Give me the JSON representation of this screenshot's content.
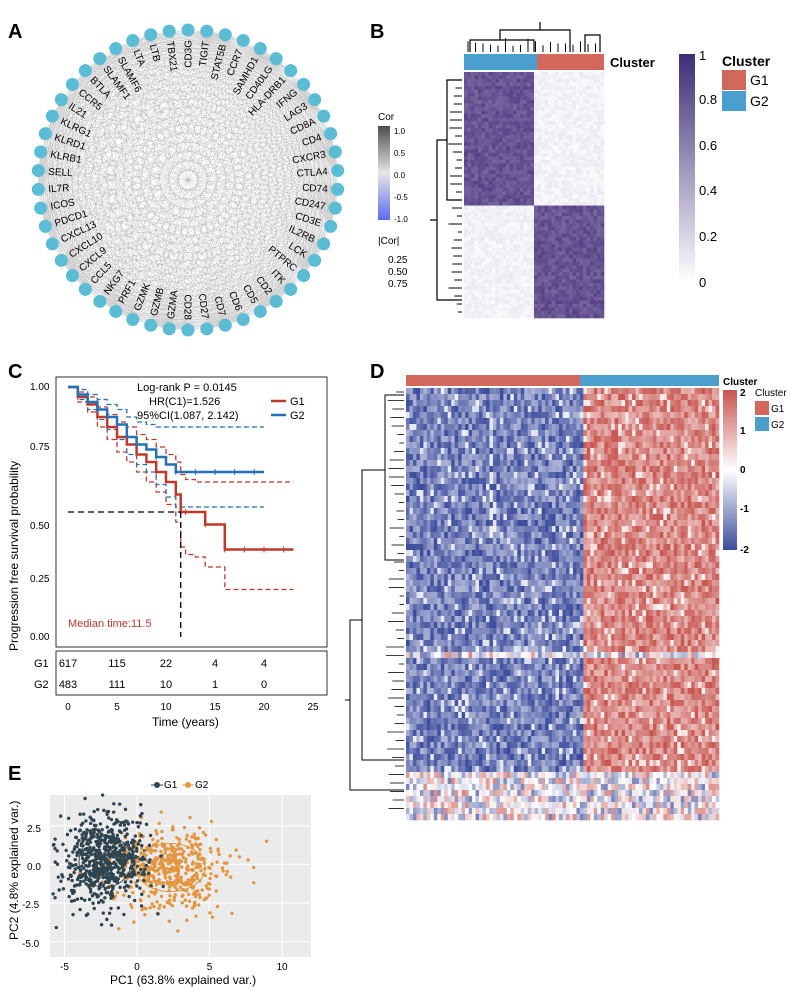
{
  "panels": {
    "a": "A",
    "b": "B",
    "c": "C",
    "d": "D",
    "e": "E"
  },
  "colors": {
    "g1": "#d2675c",
    "g2": "#4a9fcf",
    "heat_dark": "#3f2c77",
    "heat_blue": "#3a4b9c",
    "heat_red": "#c8554f",
    "pca_g1": "#2f4550",
    "pca_g2": "#e3963f",
    "km_g1": "#c1392b",
    "km_g2": "#2471b5",
    "gray_bg": "#ebebeb",
    "node": "#5bbcd6"
  },
  "chart_data": [
    {
      "id": "A",
      "type": "network",
      "nodes": [
        "CD3G",
        "TIGIT",
        "STAT5B",
        "CCR7",
        "SAMHD1",
        "CD40LG",
        "HLA-DRB1",
        "IFNG",
        "LAG3",
        "CD8A",
        "CD4",
        "CXCR3",
        "CTLA4",
        "CD74",
        "CD247",
        "CD3E",
        "IL2RB",
        "LCK",
        "PTPRC",
        "ITK",
        "CD2",
        "CD5",
        "CD6",
        "CD7",
        "CD27",
        "CD28",
        "GZMA",
        "GZMB",
        "GZMK",
        "PRF1",
        "NKG7",
        "CCL5",
        "CXCL9",
        "CXCL10",
        "CXCL13",
        "PDCD1",
        "ICOS",
        "IL7R",
        "SELL",
        "KLRB1",
        "KLRD1",
        "KLRG1",
        "IL21",
        "CCR5",
        "BTLA",
        "SLAMF1",
        "SLAMF6",
        "LTA",
        "LTB",
        "TBX21"
      ],
      "legend": {
        "title": "Cor",
        "ticks": [
          "1.0",
          "0.5",
          "0.0",
          "-0.5",
          "-1.0"
        ],
        "size_title": "|Cor|",
        "sizes": [
          "0.25",
          "0.50",
          "0.75"
        ]
      }
    },
    {
      "id": "B",
      "type": "heatmap",
      "title": "Cluster",
      "legend_title": "Cluster",
      "groups": [
        "G1",
        "G2"
      ],
      "scale_ticks": [
        "1",
        "0.8",
        "0.6",
        "0.4",
        "0.2",
        "0"
      ]
    },
    {
      "id": "C",
      "type": "line",
      "ylabel": "Progression free survival probability",
      "xlabel": "Time (years)",
      "yticks": [
        "1.00",
        "0.75",
        "0.50",
        "0.25",
        "0.00"
      ],
      "xticks": [
        "0",
        "5",
        "10",
        "15",
        "20",
        "25"
      ],
      "xlim": [
        0,
        25
      ],
      "ylim": [
        0,
        1
      ],
      "annotation": [
        "Log-rank P = 0.0145",
        "HR(C1)=1.526",
        "95%CI(1.087, 2.142)"
      ],
      "median_label": "Median time:11.5",
      "median": 11.5,
      "series": [
        {
          "name": "G1",
          "x": [
            0,
            1,
            2,
            3,
            4,
            5,
            6,
            7,
            8,
            9,
            10,
            11,
            11.5,
            12,
            13,
            14,
            15,
            16,
            17,
            18,
            19,
            20,
            21,
            22,
            23
          ],
          "y": [
            1.0,
            0.96,
            0.93,
            0.88,
            0.84,
            0.8,
            0.77,
            0.73,
            0.7,
            0.66,
            0.62,
            0.57,
            0.5,
            0.5,
            0.5,
            0.45,
            0.45,
            0.35,
            0.35,
            0.35,
            0.35,
            0.35,
            0.35,
            0.35,
            0.35
          ],
          "upper": [
            1.0,
            0.98,
            0.96,
            0.92,
            0.89,
            0.86,
            0.84,
            0.81,
            0.79,
            0.76,
            0.73,
            0.7,
            0.65,
            0.63,
            0.62,
            0.62,
            0.62,
            0.62,
            0.62,
            0.62,
            0.62,
            0.62,
            0.62,
            0.62,
            0.62
          ],
          "lower": [
            1.0,
            0.94,
            0.9,
            0.84,
            0.79,
            0.74,
            0.7,
            0.66,
            0.62,
            0.58,
            0.53,
            0.46,
            0.36,
            0.33,
            0.32,
            0.28,
            0.28,
            0.19,
            0.19,
            0.19,
            0.19,
            0.19,
            0.19,
            0.19,
            0.19
          ]
        },
        {
          "name": "G2",
          "x": [
            0,
            1,
            2,
            3,
            4,
            5,
            6,
            7,
            8,
            9,
            10,
            11,
            12,
            13,
            14,
            15,
            16,
            17,
            18,
            19,
            20
          ],
          "y": [
            1.0,
            0.97,
            0.94,
            0.91,
            0.88,
            0.85,
            0.8,
            0.77,
            0.75,
            0.72,
            0.69,
            0.66,
            0.66,
            0.66,
            0.66,
            0.66,
            0.66,
            0.66,
            0.66,
            0.66,
            0.66
          ],
          "upper": [
            1.0,
            0.99,
            0.97,
            0.95,
            0.93,
            0.91,
            0.88,
            0.86,
            0.85,
            0.84,
            0.84,
            0.84,
            0.84,
            0.84,
            0.84,
            0.84,
            0.84,
            0.84,
            0.84,
            0.84,
            0.84
          ],
          "lower": [
            1.0,
            0.95,
            0.91,
            0.87,
            0.83,
            0.79,
            0.73,
            0.69,
            0.66,
            0.61,
            0.56,
            0.52,
            0.52,
            0.52,
            0.52,
            0.52,
            0.52,
            0.52,
            0.52,
            0.52,
            0.52
          ]
        }
      ],
      "risk_table": {
        "rows": [
          {
            "name": "G1",
            "values": [
              "617",
              "115",
              "22",
              "4",
              "4"
            ]
          },
          {
            "name": "G2",
            "values": [
              "483",
              "111",
              "10",
              "1",
              "0"
            ]
          }
        ],
        "times": [
          0,
          5,
          10,
          15,
          20
        ]
      }
    },
    {
      "id": "D",
      "type": "heatmap",
      "title": "Cluster",
      "legend_title": "Cluster",
      "groups": [
        "G1",
        "G2"
      ],
      "scale_ticks": [
        "2",
        "1",
        "0",
        "-1",
        "-2"
      ]
    },
    {
      "id": "E",
      "type": "scatter",
      "xlabel": "PC1 (63.8% explained var.)",
      "ylabel": "PC2 (4.8% explained var.)",
      "xticks": [
        "-5",
        "0",
        "5",
        "10"
      ],
      "yticks": [
        "2.5",
        "0.0",
        "-2.5",
        "-5.0"
      ],
      "xlim": [
        -6,
        12
      ],
      "ylim": [
        -6,
        4.5
      ],
      "legend": [
        "G1",
        "G2"
      ],
      "clusters": [
        {
          "name": "G1",
          "cx": -2.2,
          "cy": 0.2,
          "sx": 1.5,
          "sy": 1.4,
          "n": 650
        },
        {
          "name": "G2",
          "cx": 2.3,
          "cy": -0.2,
          "sx": 2.0,
          "sy": 1.3,
          "n": 480
        }
      ]
    }
  ]
}
